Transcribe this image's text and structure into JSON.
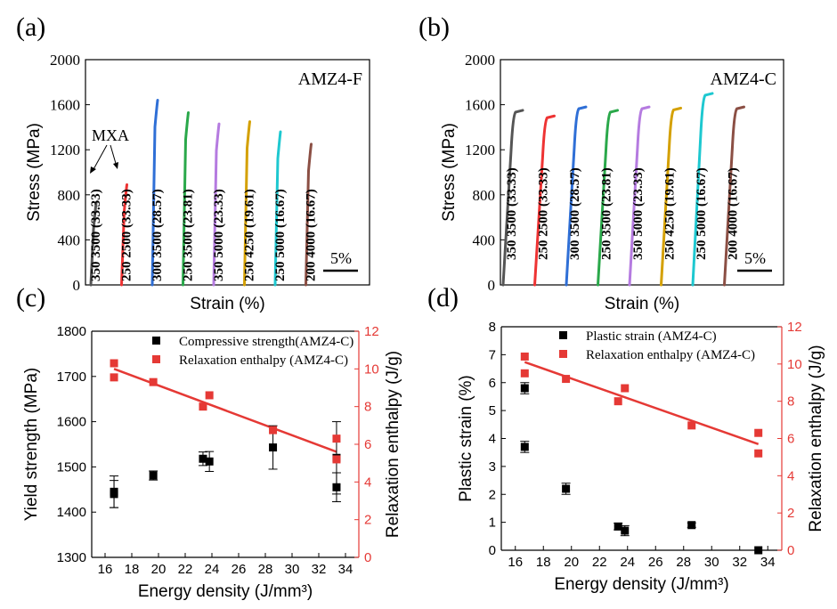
{
  "panel_labels": [
    "(a)",
    "(b)",
    "(c)",
    "(d)"
  ],
  "chart_data": [
    {
      "id": "a",
      "type": "line",
      "title": "AMZ4-F",
      "xlabel": "Strain (%)",
      "ylabel": "Stress (MPa)",
      "ylim": [
        0,
        2000
      ],
      "yticks": [
        "0",
        "400",
        "800",
        "1200",
        "1600",
        "2000"
      ],
      "scale_bar_label": "5%",
      "annotation": "MXA",
      "series": [
        {
          "label": "350 3500 (33.33)",
          "peak_stress": 730,
          "color": "#555555"
        },
        {
          "label": "250 2500 (33.33)",
          "peak_stress": 890,
          "color": "#ee3333"
        },
        {
          "label": "300 3500 (28.57)",
          "peak_stress": 1640,
          "color": "#2f6fd6"
        },
        {
          "label": "250 3500 (23.81)",
          "peak_stress": 1530,
          "color": "#2aa84a"
        },
        {
          "label": "350 5000 (23.33)",
          "peak_stress": 1430,
          "color": "#b57be0"
        },
        {
          "label": "250 4250 (19.61)",
          "peak_stress": 1450,
          "color": "#d4a000"
        },
        {
          "label": "250 5000 (16.67)",
          "peak_stress": 1360,
          "color": "#1ec8d0"
        },
        {
          "label": "200 4000 (16.67)",
          "peak_stress": 1250,
          "color": "#8b4f44"
        }
      ]
    },
    {
      "id": "b",
      "type": "line",
      "title": "AMZ4-C",
      "xlabel": "Strain (%)",
      "ylabel": "Stress (MPa)",
      "ylim": [
        0,
        2000
      ],
      "yticks": [
        "0",
        "400",
        "800",
        "1200",
        "1600",
        "2000"
      ],
      "scale_bar_label": "5%",
      "series": [
        {
          "label": "350 3500 (33.33)",
          "peak_stress": 1550,
          "color": "#555555"
        },
        {
          "label": "250 2500 (33.33)",
          "peak_stress": 1500,
          "color": "#ee3333"
        },
        {
          "label": "300 3500 (28.57)",
          "peak_stress": 1580,
          "color": "#2f6fd6"
        },
        {
          "label": "250 3500 (23.81)",
          "peak_stress": 1550,
          "color": "#2aa84a"
        },
        {
          "label": "350 5000 (23.33)",
          "peak_stress": 1580,
          "color": "#b57be0"
        },
        {
          "label": "250 4250 (19.61)",
          "peak_stress": 1570,
          "color": "#d4a000"
        },
        {
          "label": "250 5000 (16.67)",
          "peak_stress": 1700,
          "color": "#1ec8d0"
        },
        {
          "label": "200 4000 (16.67)",
          "peak_stress": 1580,
          "color": "#8b4f44"
        }
      ]
    },
    {
      "id": "c",
      "type": "scatter",
      "xlabel": "Energy density (J/mm³)",
      "ylabel": "Yield strength (MPa)",
      "y2label": "Relaxation enthalpy (J/g)",
      "xlim": [
        15,
        35
      ],
      "xticks": [
        16,
        18,
        20,
        22,
        24,
        26,
        28,
        30,
        32,
        34
      ],
      "ylim": [
        1300,
        1800
      ],
      "yticks": [
        1300,
        1400,
        1500,
        1600,
        1700,
        1800
      ],
      "y2lim": [
        0,
        12
      ],
      "y2ticks": [
        0,
        2,
        4,
        6,
        8,
        10,
        12
      ],
      "legend_position": "top-right",
      "series": [
        {
          "name": "Compressive strength(AMZ4-C)",
          "color": "#000000",
          "axis": "left",
          "points": [
            [
              16.67,
              1445,
              35
            ],
            [
              16.67,
              1440,
              30
            ],
            [
              19.61,
              1481,
              10
            ],
            [
              23.33,
              1518,
              15
            ],
            [
              23.81,
              1512,
              22
            ],
            [
              28.57,
              1543,
              48
            ],
            [
              33.33,
              1520,
              80
            ],
            [
              33.33,
              1455,
              32
            ]
          ]
        },
        {
          "name": "Relaxation enthalpy (AMZ4-C)",
          "color": "#e53935",
          "axis": "right",
          "points": [
            [
              16.67,
              10.3
            ],
            [
              16.67,
              9.55
            ],
            [
              19.61,
              9.3
            ],
            [
              23.33,
              8.0
            ],
            [
              23.81,
              8.6
            ],
            [
              28.57,
              6.75
            ],
            [
              33.33,
              6.3
            ],
            [
              33.33,
              5.2
            ]
          ],
          "fit": [
            [
              16.67,
              10.0
            ],
            [
              33.33,
              5.6
            ]
          ]
        }
      ]
    },
    {
      "id": "d",
      "type": "scatter",
      "xlabel": "Energy density (J/mm³)",
      "ylabel": "Plastic strain (%)",
      "y2label": "Relaxation enthalpy (J/g)",
      "xlim": [
        15,
        35
      ],
      "xticks": [
        16,
        18,
        20,
        22,
        24,
        26,
        28,
        30,
        32,
        34
      ],
      "ylim": [
        0,
        8
      ],
      "yticks": [
        0,
        1,
        2,
        3,
        4,
        5,
        6,
        7,
        8
      ],
      "y2lim": [
        0,
        12
      ],
      "y2ticks": [
        0,
        2,
        4,
        6,
        8,
        10,
        12
      ],
      "legend_position": "top-right",
      "series": [
        {
          "name": "Plastic strain (AMZ4-C)",
          "color": "#000000",
          "axis": "left",
          "points": [
            [
              16.67,
              5.8,
              0.2
            ],
            [
              16.67,
              3.7,
              0.2
            ],
            [
              19.61,
              2.2,
              0.2
            ],
            [
              23.33,
              0.85,
              0.12
            ],
            [
              23.81,
              0.7,
              0.18
            ],
            [
              28.57,
              0.9,
              0.08
            ],
            [
              33.33,
              0.0,
              0.0
            ]
          ]
        },
        {
          "name": "Relaxation enthalpy (AMZ4-C)",
          "color": "#e53935",
          "axis": "right",
          "points": [
            [
              16.67,
              10.4
            ],
            [
              16.67,
              9.5
            ],
            [
              19.61,
              9.2
            ],
            [
              23.33,
              8.0
            ],
            [
              23.81,
              8.7
            ],
            [
              28.57,
              6.7
            ],
            [
              33.33,
              6.3
            ],
            [
              33.33,
              5.2
            ]
          ],
          "fit": [
            [
              16.67,
              10.1
            ],
            [
              33.33,
              5.7
            ]
          ]
        }
      ]
    }
  ]
}
